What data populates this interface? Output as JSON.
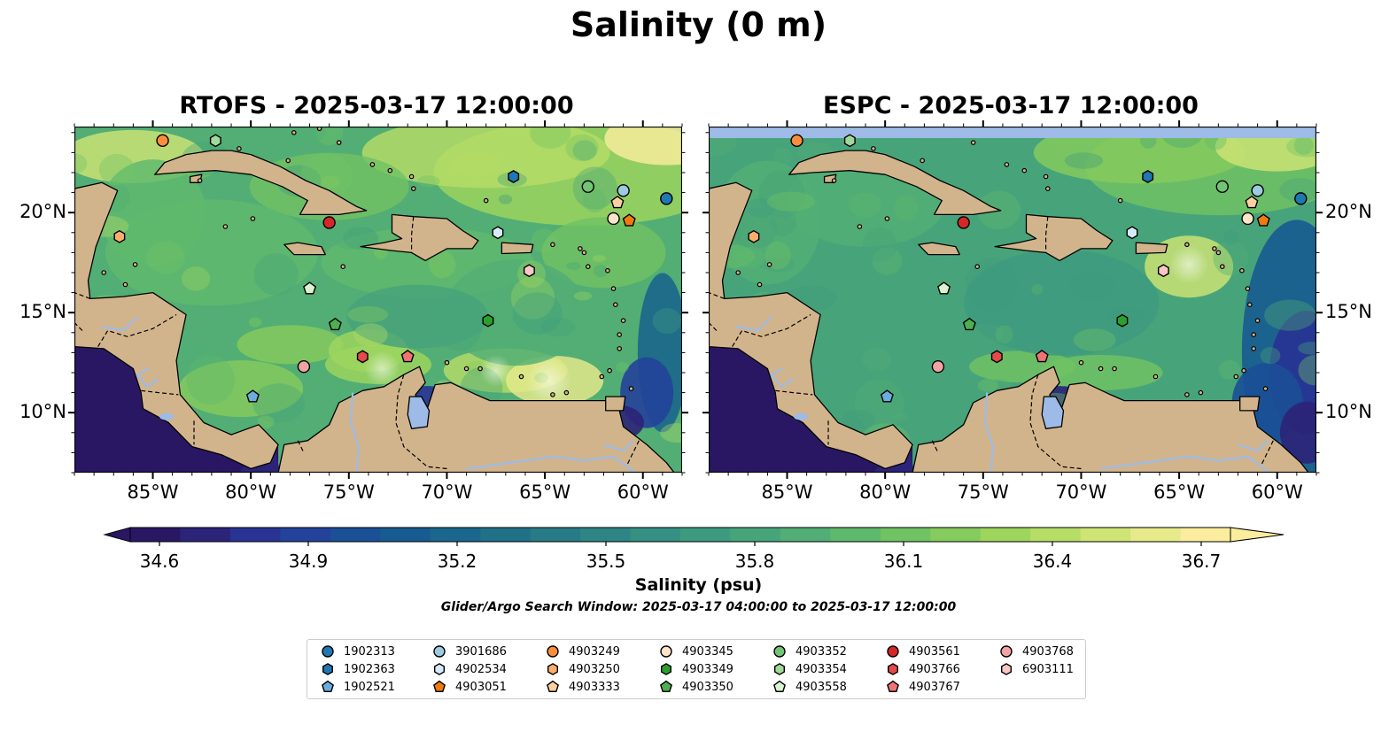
{
  "title": "Salinity (0 m)",
  "panels": [
    {
      "id": "rtofs",
      "title": "RTOFS - 2025-03-17 12:00:00",
      "y_labels_side": "left"
    },
    {
      "id": "espc",
      "title": "ESPC - 2025-03-17 12:00:00",
      "y_labels_side": "right"
    }
  ],
  "map_extent": {
    "lon": [
      -89,
      -58
    ],
    "lat": [
      7,
      24.3
    ]
  },
  "x_ticks": [
    {
      "value": -85,
      "label": "85°W"
    },
    {
      "value": -80,
      "label": "80°W"
    },
    {
      "value": -75,
      "label": "75°W"
    },
    {
      "value": -70,
      "label": "70°W"
    },
    {
      "value": -65,
      "label": "65°W"
    },
    {
      "value": -60,
      "label": "60°W"
    }
  ],
  "y_ticks": [
    {
      "value": 20,
      "label": "20°N"
    },
    {
      "value": 15,
      "label": "15°N"
    },
    {
      "value": 10,
      "label": "10°N"
    }
  ],
  "colorbar": {
    "label": "Salinity (psu)",
    "min": 34.6,
    "max": 36.7,
    "ticks": [
      "34.6",
      "34.9",
      "35.2",
      "35.5",
      "35.8",
      "36.1",
      "36.4",
      "36.7"
    ],
    "extend": "both",
    "colormap": [
      "#2a1763",
      "#2c2478",
      "#283393",
      "#23429a",
      "#1b4f96",
      "#175b91",
      "#1a668c",
      "#207188",
      "#287a86",
      "#2f8585",
      "#368f83",
      "#3e9a7f",
      "#47a47a",
      "#52ae74",
      "#5fb96c",
      "#70c263",
      "#86cb5d",
      "#9dd55e",
      "#b6dd66",
      "#cee474",
      "#e6ea8a",
      "#fbed9d"
    ]
  },
  "search_window": "Glider/Argo Search Window: 2025-03-17 04:00:00 to 2025-03-17 12:00:00",
  "colors": {
    "land": "#d2b48c",
    "ocean_mid": "#52ae74",
    "lakes": "#9dbbe6",
    "nodata": "#9dbbe6"
  },
  "floats": [
    {
      "id": "1902313",
      "marker": "circle",
      "color": "#1f77b4",
      "lon": -58.8,
      "lat": 20.7
    },
    {
      "id": "1902363",
      "marker": "hexagon",
      "color": "#1f77b4",
      "lon": -66.6,
      "lat": 21.8
    },
    {
      "id": "1902521",
      "marker": "pentagon",
      "color": "#6aaee0",
      "lon": -79.9,
      "lat": 10.8
    },
    {
      "id": "3901686",
      "marker": "circle",
      "color": "#9ecae1",
      "lon": -61.0,
      "lat": 21.1
    },
    {
      "id": "4902534",
      "marker": "hexagon",
      "color": "#d6ecfa",
      "lon": -67.4,
      "lat": 19.0
    },
    {
      "id": "4903051",
      "marker": "pentagon",
      "color": "#f07b0c",
      "lon": -60.7,
      "lat": 19.6
    },
    {
      "id": "4903249",
      "marker": "circle",
      "color": "#fd8d3c",
      "lon": -84.5,
      "lat": 23.6
    },
    {
      "id": "4903250",
      "marker": "hexagon",
      "color": "#fdae6b",
      "lon": -86.7,
      "lat": 18.8
    },
    {
      "id": "4903333",
      "marker": "pentagon",
      "color": "#fdd0a2",
      "lon": -61.3,
      "lat": 20.5
    },
    {
      "id": "4903345",
      "marker": "circle",
      "color": "#fde5c8",
      "lon": -61.5,
      "lat": 19.7
    },
    {
      "id": "4903349",
      "marker": "hexagon",
      "color": "#2ca02c",
      "lon": -67.9,
      "lat": 14.6
    },
    {
      "id": "4903350",
      "marker": "pentagon",
      "color": "#4caf50",
      "lon": -75.7,
      "lat": 14.4
    },
    {
      "id": "4903352",
      "marker": "circle",
      "color": "#74c476",
      "lon": -62.8,
      "lat": 21.3
    },
    {
      "id": "4903354",
      "marker": "hexagon",
      "color": "#a1d99b",
      "lon": -81.8,
      "lat": 23.6
    },
    {
      "id": "4903558",
      "marker": "pentagon",
      "color": "#d9f2d0",
      "lon": -77.0,
      "lat": 16.2
    },
    {
      "id": "4903561",
      "marker": "circle",
      "color": "#d62728",
      "lon": -76.0,
      "lat": 19.5
    },
    {
      "id": "4903766",
      "marker": "hexagon",
      "color": "#e34a4a",
      "lon": -74.3,
      "lat": 12.8
    },
    {
      "id": "4903767",
      "marker": "pentagon",
      "color": "#f07373",
      "lon": -72.0,
      "lat": 12.8
    },
    {
      "id": "4903768",
      "marker": "circle",
      "color": "#f4a3a3",
      "lon": -77.3,
      "lat": 12.3
    },
    {
      "id": "6903111",
      "marker": "hexagon",
      "color": "#fbc6c6",
      "lon": -65.8,
      "lat": 17.1
    }
  ]
}
